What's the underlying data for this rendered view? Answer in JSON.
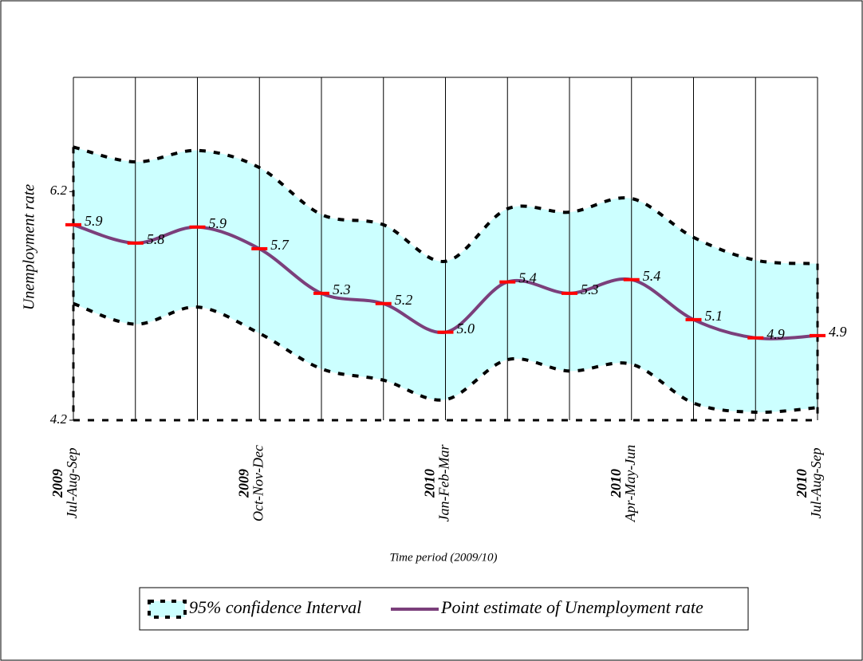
{
  "chart_data": {
    "type": "band-line",
    "y_label": "Unemployment rate",
    "x_label": "Time period (2009/10)",
    "categories": [
      "Jul-Aug-Sep",
      null,
      null,
      "Oct-Nov-Dec",
      null,
      null,
      "Jan-Feb-Mar",
      null,
      null,
      "Apr-May-Jun",
      null,
      null,
      "Jul-Aug-Sep"
    ],
    "category_years": [
      "2009",
      null,
      null,
      "2009",
      null,
      null,
      "2010",
      null,
      null,
      "2010",
      null,
      null,
      "2010"
    ],
    "ylim": [
      4.2,
      7.2
    ],
    "yticks": [
      4.2,
      6.2
    ],
    "grid": true,
    "series": [
      {
        "name": "95% confidence Interval",
        "color": "#ccffff",
        "edge_color": "#000000",
        "upper": [
          6.59,
          6.46,
          6.56,
          6.41,
          6.0,
          5.91,
          5.59,
          6.05,
          6.02,
          6.14,
          5.8,
          5.6,
          5.57
        ],
        "lower": [
          5.22,
          5.04,
          5.19,
          4.96,
          4.65,
          4.55,
          4.38,
          4.73,
          4.63,
          4.69,
          4.35,
          4.27,
          4.31
        ]
      },
      {
        "name": "Point estimate of Unemployment rate",
        "color": "#7b3f7b",
        "marker_color": "#ff0000",
        "values": [
          5.91,
          5.75,
          5.89,
          5.7,
          5.31,
          5.22,
          4.97,
          5.41,
          5.31,
          5.43,
          5.08,
          4.92,
          4.94
        ],
        "value_labels": [
          "5.9",
          "5.8",
          "5.9",
          "5.7",
          "5.3",
          "5.2",
          "5.0",
          "5.4",
          "5.3",
          "5.4",
          "5.1",
          "4.9",
          "4.9"
        ]
      }
    ]
  }
}
